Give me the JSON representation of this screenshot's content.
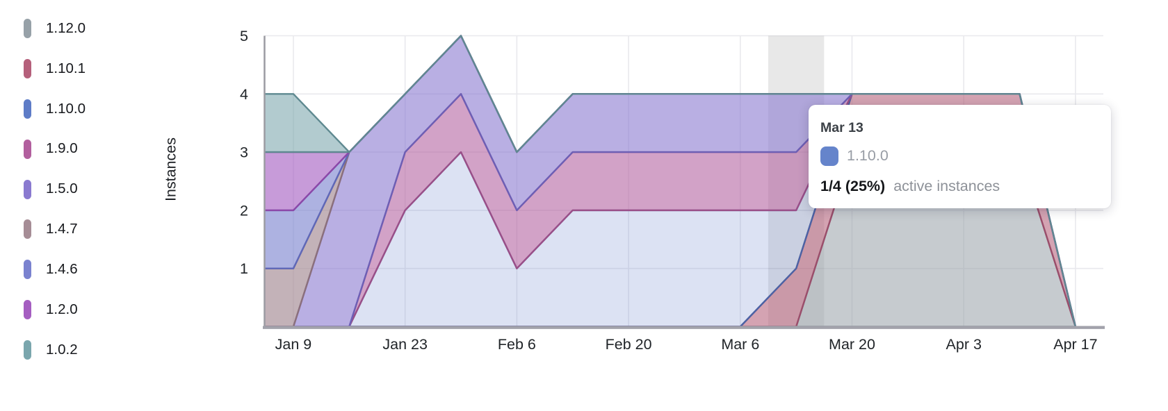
{
  "y_axis": {
    "title": "Instances",
    "ticks": [
      1,
      2,
      3,
      4,
      5
    ]
  },
  "x_axis": {
    "tick_labels": [
      "Jan 9",
      "Jan 23",
      "Feb 6",
      "Feb 20",
      "Mar 6",
      "Mar 20",
      "Apr 3",
      "Apr 17"
    ]
  },
  "tooltip": {
    "date": "Mar 13",
    "series_label": "1.10.0",
    "swatch_color": "#6584cb",
    "value": "1/4 (25%)",
    "suffix": "active instances"
  },
  "style": {
    "grid_color": "#e9e9ed",
    "spine_color": "#9b9ba2",
    "axis_line_color": "#a2a2ab",
    "highlight_color": "rgba(0,0,0,0.09)",
    "tick_label_color": "#202428"
  },
  "chart_data": {
    "type": "area",
    "stacked": true,
    "title": "",
    "xlabel": "",
    "ylabel": "Instances",
    "ylim": [
      0,
      5
    ],
    "y_ticks": [
      1,
      2,
      3,
      4,
      5
    ],
    "grid": true,
    "legend_position": "left",
    "x": [
      "Jan 2",
      "Jan 9",
      "Jan 16",
      "Jan 23",
      "Jan 30",
      "Feb 6",
      "Feb 13",
      "Feb 20",
      "Feb 27",
      "Mar 6",
      "Mar 13",
      "Mar 20",
      "Mar 27",
      "Apr 3",
      "Apr 10",
      "Apr 17"
    ],
    "x_tick_labels": [
      "Jan 9",
      "Jan 23",
      "Feb 6",
      "Feb 20",
      "Mar 6",
      "Mar 20",
      "Apr 3",
      "Apr 17"
    ],
    "hovered_point": {
      "x": "Mar 13",
      "series": "1.10.0",
      "active": 1,
      "total": 4,
      "percent": 25
    },
    "series": [
      {
        "name": "1.12.0",
        "color": "#97a1a8",
        "stroke": "#79828d",
        "fill_opacity": 0.55,
        "values": [
          0,
          0,
          0,
          0,
          0,
          0,
          0,
          0,
          0,
          0,
          0,
          3,
          3,
          3,
          3,
          0
        ]
      },
      {
        "name": "1.10.1",
        "color": "#b5607b",
        "stroke": "#9b4e6b",
        "fill_opacity": 0.58,
        "values": [
          0,
          0,
          0,
          0,
          0,
          0,
          0,
          0,
          0,
          0,
          1,
          1,
          1,
          1,
          1,
          0
        ]
      },
      {
        "name": "1.10.0",
        "color": "#5e7cc7",
        "stroke": "#4b63a5",
        "fill_opacity": 0.22,
        "values": [
          0,
          0,
          0,
          2,
          3,
          1,
          2,
          2,
          2,
          2,
          1,
          0,
          0,
          0,
          0,
          0
        ]
      },
      {
        "name": "1.9.0",
        "color": "#b25f9e",
        "stroke": "#9a4f88",
        "fill_opacity": 0.58,
        "values": [
          0,
          0,
          0,
          1,
          1,
          1,
          1,
          1,
          1,
          1,
          1,
          0,
          0,
          0,
          0,
          0
        ]
      },
      {
        "name": "1.5.0",
        "color": "#8a7ad0",
        "stroke": "#6d5fb5",
        "fill_opacity": 0.6,
        "values": [
          0,
          0,
          3,
          1,
          1,
          1,
          1,
          1,
          1,
          1,
          1,
          0,
          0,
          0,
          0,
          0
        ]
      },
      {
        "name": "1.4.7",
        "color": "#a68d96",
        "stroke": "#8b707c",
        "fill_opacity": 0.68,
        "values": [
          1,
          1,
          0,
          0,
          0,
          0,
          0,
          0,
          0,
          0,
          0,
          0,
          0,
          0,
          0,
          0
        ]
      },
      {
        "name": "1.4.6",
        "color": "#7a82cf",
        "stroke": "#5f68b8",
        "fill_opacity": 0.62,
        "values": [
          1,
          1,
          0,
          0,
          0,
          0,
          0,
          0,
          0,
          0,
          0,
          0,
          0,
          0,
          0,
          0
        ]
      },
      {
        "name": "1.2.0",
        "color": "#a55ec1",
        "stroke": "#8c48a8",
        "fill_opacity": 0.62,
        "values": [
          1,
          1,
          0,
          0,
          0,
          0,
          0,
          0,
          0,
          0,
          0,
          0,
          0,
          0,
          0,
          0
        ]
      },
      {
        "name": "1.0.2",
        "color": "#7aa6ad",
        "stroke": "#5f8990",
        "fill_opacity": 0.58,
        "values": [
          1,
          1,
          0,
          0,
          0,
          0,
          0,
          0,
          0,
          0,
          0,
          0,
          0,
          0,
          0,
          0
        ]
      }
    ]
  }
}
